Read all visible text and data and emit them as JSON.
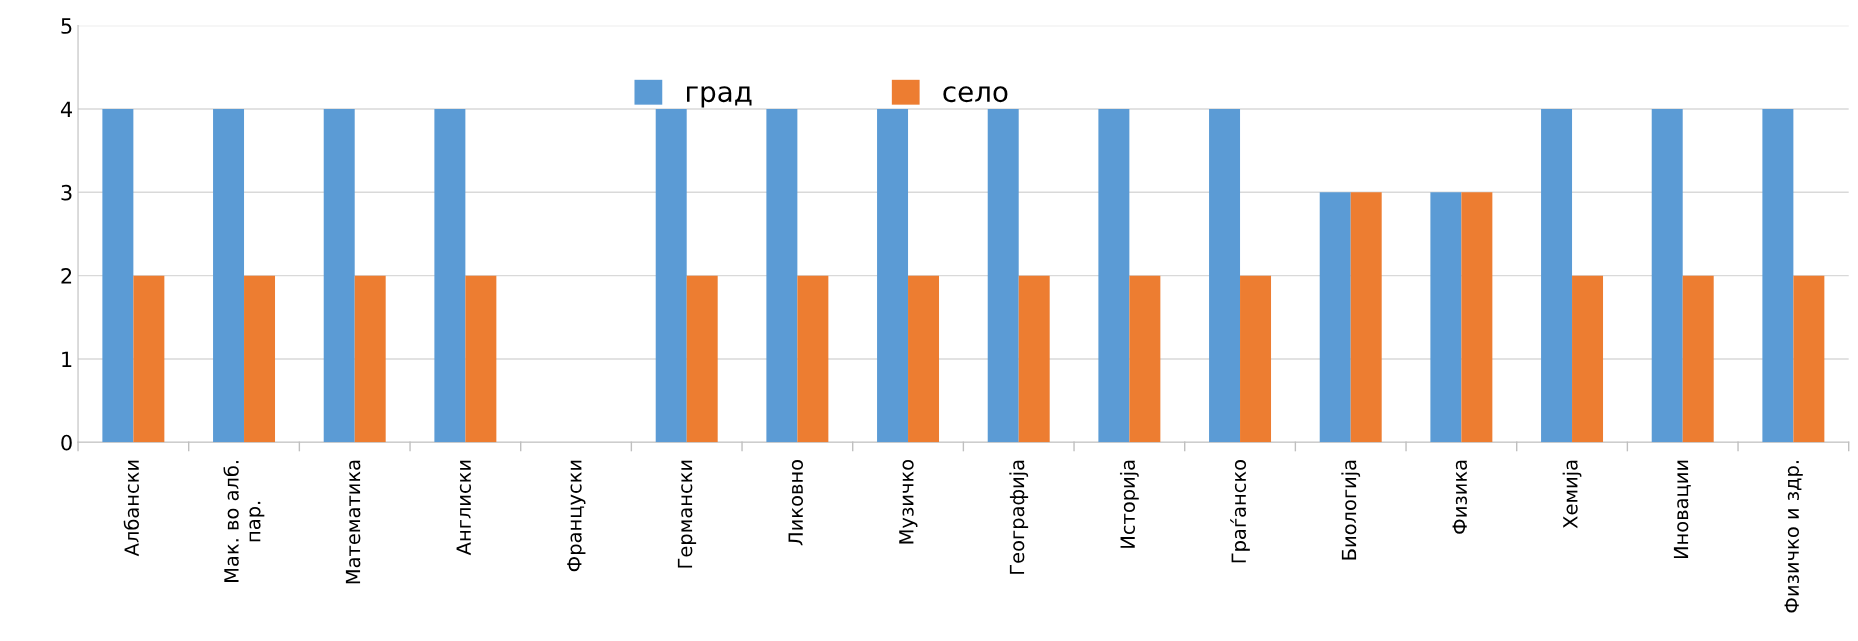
{
  "chart_data": {
    "type": "bar",
    "categories": [
      "Албански",
      "Мак. во алб.\nпар.",
      "Математика",
      "Англиски",
      "Француски",
      "Германски",
      "Ликовно",
      "Музичко",
      "Географија",
      "Историја",
      "Граѓанско",
      "Биологија",
      "Физика",
      "Хемија",
      "Иновации",
      "Физичко и здр."
    ],
    "series": [
      {
        "name": "град",
        "color": "#5b9bd5",
        "values": [
          4,
          4,
          4,
          4,
          0,
          4,
          4,
          4,
          4,
          4,
          4,
          3,
          3,
          4,
          4,
          4
        ]
      },
      {
        "name": "село",
        "color": "#ed7d31",
        "values": [
          2,
          2,
          2,
          2,
          0,
          2,
          2,
          2,
          2,
          2,
          2,
          3,
          3,
          2,
          2,
          2
        ]
      }
    ],
    "ylim": [
      0,
      5
    ],
    "yticks": [
      0,
      1,
      2,
      3,
      4,
      5
    ],
    "grid": "y",
    "legend": "top"
  }
}
